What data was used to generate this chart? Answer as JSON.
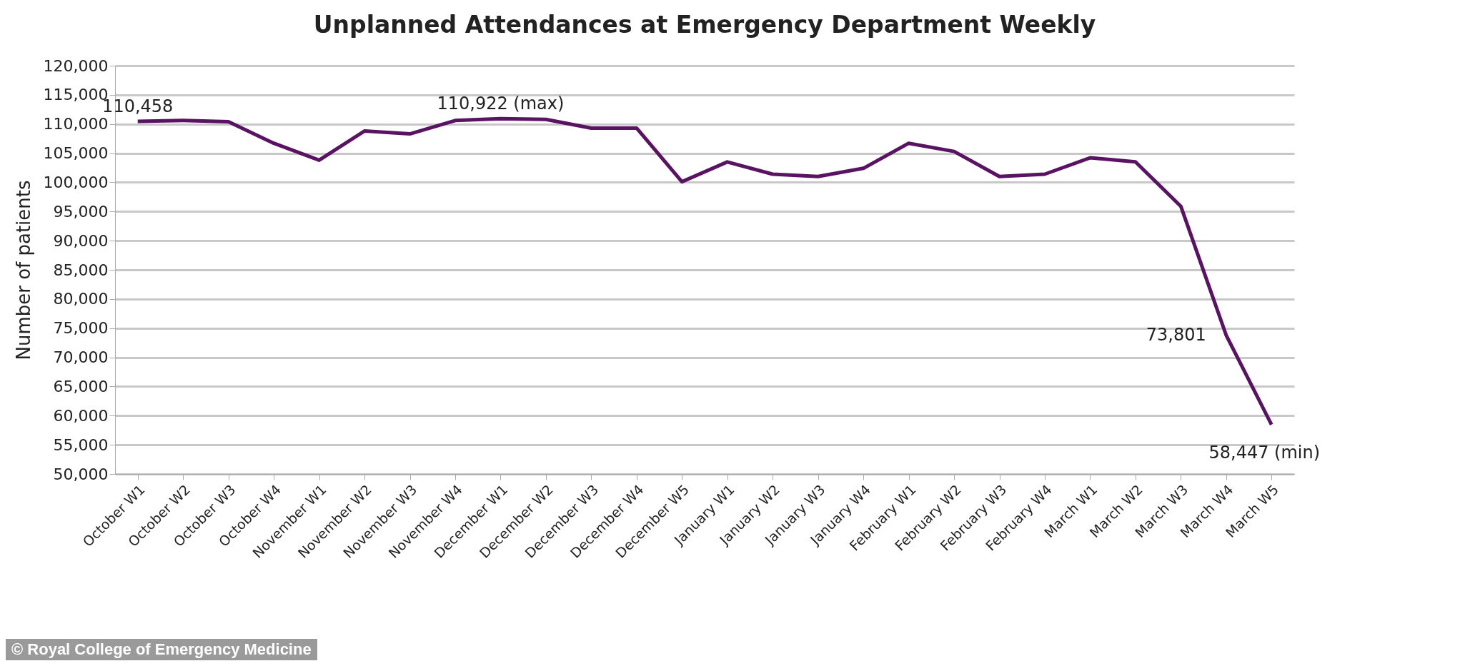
{
  "chart_data": {
    "type": "line",
    "title": "Unplanned Attendances at Emergency Department Weekly",
    "ylabel": "Number of patients",
    "categories": [
      "October W1",
      "October W2",
      "October W3",
      "October W4",
      "November W1",
      "November W2",
      "November W3",
      "November W4",
      "December W1",
      "December W2",
      "December W3",
      "December W4",
      "December W5",
      "January W1",
      "January W2",
      "January W3",
      "January W4",
      "February W1",
      "February W2",
      "February W3",
      "February W4",
      "March W1",
      "March W2",
      "March W3",
      "March W4",
      "March W5"
    ],
    "series": [
      {
        "color": "#5a1362",
        "values": [
          110458,
          110600,
          110400,
          106700,
          103800,
          108800,
          108300,
          110600,
          110922,
          110800,
          109300,
          109300,
          100100,
          103500,
          101400,
          101000,
          102400,
          106700,
          105300,
          101000,
          101400,
          104200,
          103500,
          95900,
          73801,
          58447
        ]
      }
    ],
    "value_labels": [
      "110,458",
      null,
      null,
      null,
      null,
      null,
      null,
      null,
      "110,922 (max)",
      null,
      null,
      null,
      null,
      null,
      null,
      null,
      null,
      null,
      null,
      null,
      null,
      null,
      null,
      null,
      "73,801",
      "58,447 (min)"
    ],
    "ylim": [
      50000,
      120000
    ],
    "yticks": [
      {
        "value": 50000,
        "label": "50,000"
      },
      {
        "value": 55000,
        "label": "55,000"
      },
      {
        "value": 60000,
        "label": "60,000"
      },
      {
        "value": 65000,
        "label": "65,000"
      },
      {
        "value": 70000,
        "label": "70,000"
      },
      {
        "value": 75000,
        "label": "75,000"
      },
      {
        "value": 80000,
        "label": "80,000"
      },
      {
        "value": 85000,
        "label": "85,000"
      },
      {
        "value": 90000,
        "label": "90,000"
      },
      {
        "value": 95000,
        "label": "95,000"
      },
      {
        "value": 100000,
        "label": "100,000"
      },
      {
        "value": 105000,
        "label": "105,000"
      },
      {
        "value": 110000,
        "label": "110,000"
      },
      {
        "value": 115000,
        "label": "115,000"
      },
      {
        "value": 120000,
        "label": "120,000"
      }
    ],
    "grid": "y",
    "marker": "none",
    "line_style": "solid",
    "annotations": [
      "© Royal College of Emergency Medicine"
    ]
  }
}
